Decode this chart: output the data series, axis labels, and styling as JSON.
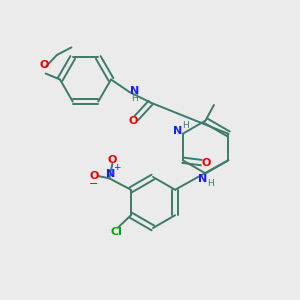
{
  "bg_color": "#ebebeb",
  "bond_color": "#3d7a6b",
  "n_color": "#1a1aff",
  "o_color": "#ee0000",
  "cl_color": "#00aa00",
  "lw": 1.4,
  "fs": 8,
  "fs_small": 6.5,
  "xlim": [
    0,
    10
  ],
  "ylim": [
    0,
    10
  ]
}
